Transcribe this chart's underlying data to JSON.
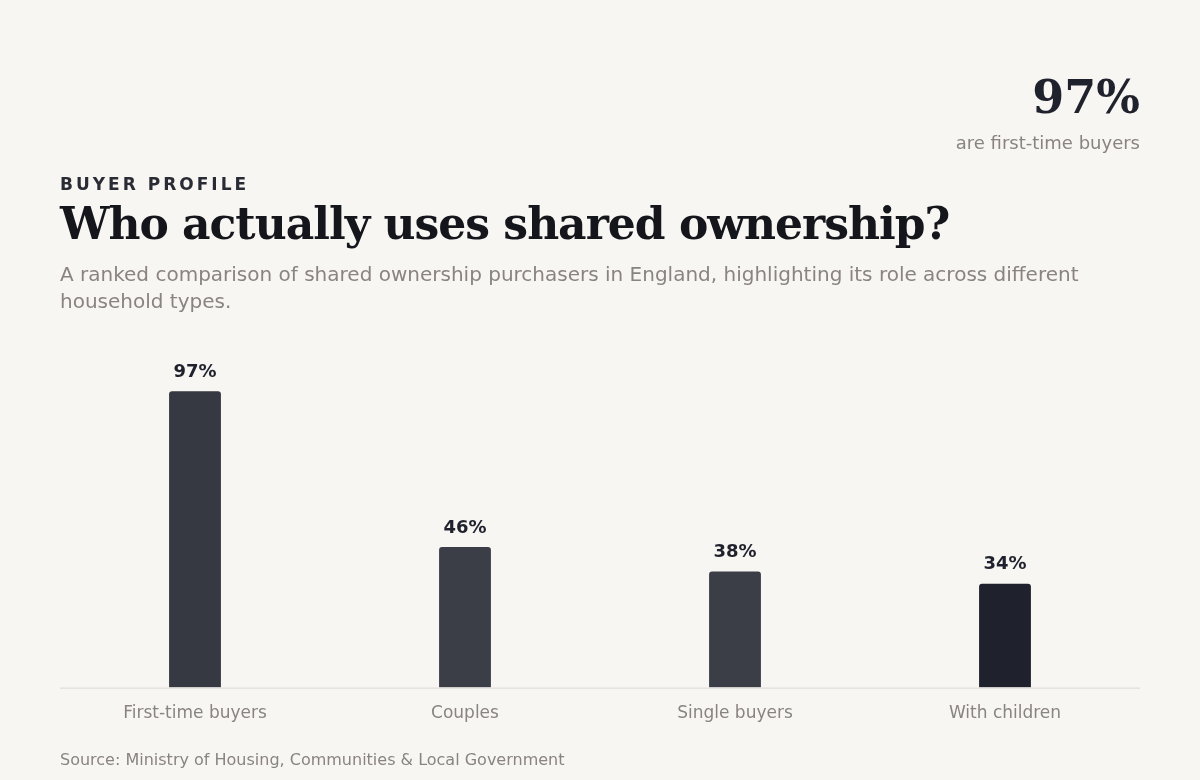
{
  "chart_data": {
    "type": "bar",
    "title": "Who actually uses shared ownership?",
    "subtitle": "A ranked comparison of shared ownership purchasers in England, highlighting its role across different household types.",
    "annotations": [
      "BUYER PROFILE",
      "97%",
      "are first-time buyers",
      "Source: Ministry of Housing, Communities & Local Government"
    ],
    "categories": [
      "First-time buyers",
      "Couples",
      "Single buyers",
      "With children"
    ],
    "values": [
      97,
      46,
      38,
      34
    ],
    "value_labels": [
      "97%",
      "46%",
      "38%",
      "34%"
    ],
    "colors": [
      "#363842",
      "#3b3d47",
      "#3b3d47",
      "#1f222c"
    ],
    "grid": false,
    "legend": false
  }
}
